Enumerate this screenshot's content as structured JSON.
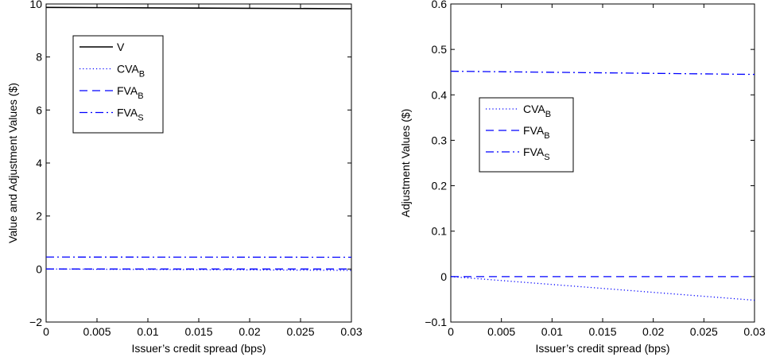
{
  "chart_data": [
    {
      "type": "line",
      "xlabel": "Issuer’s credit spread (bps)",
      "ylabel": "Value and Adjustment Values ($)",
      "xlim": [
        0,
        0.03
      ],
      "ylim": [
        -2,
        10
      ],
      "xticks": [
        0,
        0.005,
        0.01,
        0.015,
        0.02,
        0.025,
        0.03
      ],
      "xticklabels": [
        "0",
        "0.005",
        "0.01",
        "0.015",
        "0.02",
        "0.025",
        "0.03"
      ],
      "yticks": [
        -2,
        0,
        2,
        4,
        6,
        8,
        10
      ],
      "yticklabels": [
        "−2",
        "0",
        "2",
        "4",
        "6",
        "8",
        "10"
      ],
      "legend_placement": "upper-left",
      "series": [
        {
          "name": "V",
          "sub": "",
          "style": "solid",
          "color": "#000000",
          "x": [
            0,
            0.03
          ],
          "y": [
            9.87,
            9.82
          ]
        },
        {
          "name": "CVA",
          "sub": "B",
          "style": "dotted",
          "color": "#0000ff",
          "x": [
            0,
            0.03
          ],
          "y": [
            0,
            -0.05
          ]
        },
        {
          "name": "FVA",
          "sub": "B",
          "style": "dashed",
          "color": "#0000ff",
          "x": [
            0,
            0.03
          ],
          "y": [
            0,
            0
          ]
        },
        {
          "name": "FVA",
          "sub": "S",
          "style": "dashdot",
          "color": "#0000ff",
          "x": [
            0,
            0.03
          ],
          "y": [
            0.452,
            0.445
          ]
        }
      ]
    },
    {
      "type": "line",
      "xlabel": "Issuer’s credit spread (bps)",
      "ylabel": "Adjustment Values ($)",
      "xlim": [
        0,
        0.03
      ],
      "ylim": [
        -0.1,
        0.6
      ],
      "xticks": [
        0,
        0.005,
        0.01,
        0.015,
        0.02,
        0.025,
        0.03
      ],
      "xticklabels": [
        "0",
        "0.005",
        "0.01",
        "0.015",
        "0.02",
        "0.025",
        "0.03"
      ],
      "yticks": [
        -0.1,
        0,
        0.1,
        0.2,
        0.3,
        0.4,
        0.5,
        0.6
      ],
      "yticklabels": [
        "−0.1",
        "0",
        "0.1",
        "0.2",
        "0.3",
        "0.4",
        "0.5",
        "0.6"
      ],
      "legend_placement": "center-left",
      "series": [
        {
          "name": "CVA",
          "sub": "B",
          "style": "dotted",
          "color": "#0000ff",
          "x": [
            0,
            0.03
          ],
          "y": [
            0,
            -0.052
          ]
        },
        {
          "name": "FVA",
          "sub": "B",
          "style": "dashed",
          "color": "#0000ff",
          "x": [
            0,
            0.03
          ],
          "y": [
            0,
            0
          ]
        },
        {
          "name": "FVA",
          "sub": "S",
          "style": "dashdot",
          "color": "#0000ff",
          "x": [
            0,
            0.03
          ],
          "y": [
            0.452,
            0.445
          ]
        }
      ]
    }
  ]
}
